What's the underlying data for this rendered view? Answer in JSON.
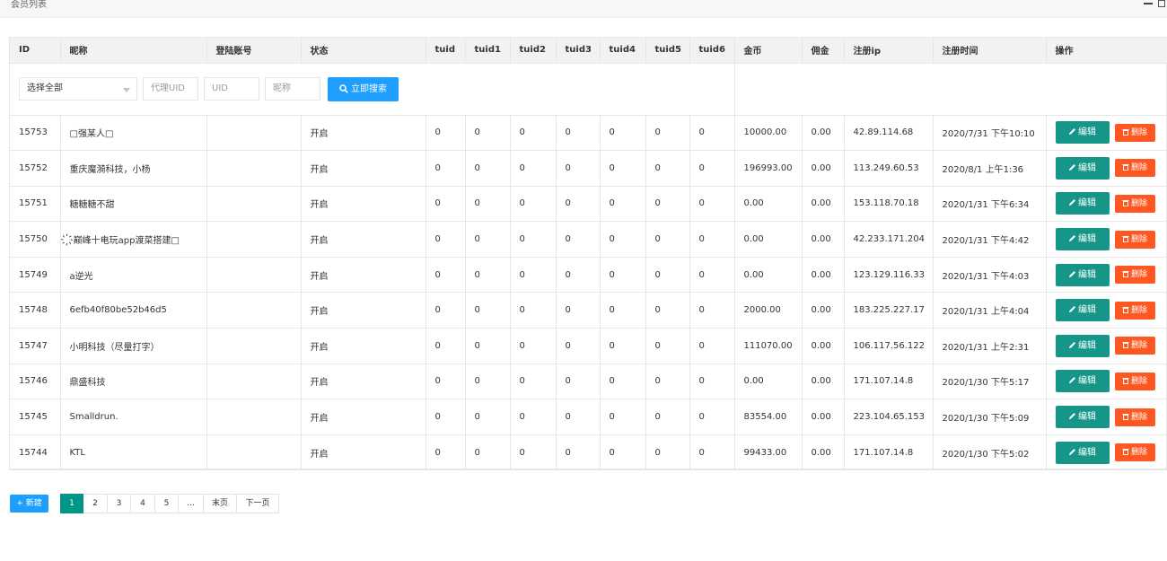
{
  "window": {
    "title": "会员列表"
  },
  "table": {
    "headers": [
      "ID",
      "昵称",
      "登陆账号",
      "状态",
      "tuid",
      "tuid1",
      "tuid2",
      "tuid3",
      "tuid4",
      "tuid5",
      "tuid6",
      "金币",
      "佣金",
      "注册ip",
      "注册时间",
      "操作"
    ],
    "rows": [
      [
        "15753",
        "□强某人□",
        "",
        "开启",
        "0",
        "0",
        "0",
        "0",
        "0",
        "0",
        "0",
        "10000.00",
        "0.00",
        "42.89.114.68",
        "2020/7/31 下午10:10"
      ],
      [
        "15752",
        "重庆魔漪科技，小杨",
        "",
        "开启",
        "0",
        "0",
        "0",
        "0",
        "0",
        "0",
        "0",
        "196993.00",
        "0.00",
        "113.249.60.53",
        "2020/8/1 上午1:36"
      ],
      [
        "15751",
        "糖糖糖不甜",
        "",
        "开启",
        "0",
        "0",
        "0",
        "0",
        "0",
        "0",
        "0",
        "0.00",
        "0.00",
        "153.118.70.18",
        "2020/1/31 下午6:34"
      ],
      [
        "15750",
        "҉巅峰十电玩app渡菜搭建□",
        "",
        "开启",
        "0",
        "0",
        "0",
        "0",
        "0",
        "0",
        "0",
        "0.00",
        "0.00",
        "42.233.171.204",
        "2020/1/31 下午4:42"
      ],
      [
        "15749",
        "a逆光",
        "",
        "开启",
        "0",
        "0",
        "0",
        "0",
        "0",
        "0",
        "0",
        "0.00",
        "0.00",
        "123.129.116.33",
        "2020/1/31 下午4:03"
      ],
      [
        "15748",
        "6efb40f80be52b46d5",
        "",
        "开启",
        "0",
        "0",
        "0",
        "0",
        "0",
        "0",
        "0",
        "2000.00",
        "0.00",
        "183.225.227.17",
        "2020/1/31 上午4:04"
      ],
      [
        "15747",
        "小明科技（尽量打字）",
        "",
        "开启",
        "0",
        "0",
        "0",
        "0",
        "0",
        "0",
        "0",
        "111070.00",
        "0.00",
        "106.117.56.122",
        "2020/1/31 上午2:31"
      ],
      [
        "15746",
        "鼎盛科技",
        "",
        "开启",
        "0",
        "0",
        "0",
        "0",
        "0",
        "0",
        "0",
        "0.00",
        "0.00",
        "171.107.14.8",
        "2020/1/30 下午5:17"
      ],
      [
        "15745",
        "Smalldrun.",
        "",
        "开启",
        "0",
        "0",
        "0",
        "0",
        "0",
        "0",
        "0",
        "83554.00",
        "0.00",
        "223.104.65.153",
        "2020/1/30 下午5:09"
      ],
      [
        "15744",
        "KTL",
        "",
        "开启",
        "0",
        "0",
        "0",
        "0",
        "0",
        "0",
        "0",
        "99433.00",
        "0.00",
        "171.107.14.8",
        "2020/1/30 下午5:02"
      ]
    ],
    "actions": {
      "edit_label": "编辑",
      "delete_label": "删除"
    }
  },
  "search": {
    "select_value": "选择全部",
    "agent_uid_placeholder": "代理UID",
    "uid_placeholder": "UID",
    "nickname_placeholder": "昵称",
    "button_label": "立即搜索"
  },
  "footer": {
    "new_label": "新建",
    "pages": [
      "1",
      "2",
      "3",
      "4",
      "5",
      "…",
      "末页",
      "下一页"
    ],
    "current_page": "1"
  },
  "colors": {
    "primary": "#1e9fff",
    "edit": "#159688",
    "delete": "#ff5722",
    "status_on": "#009900",
    "pager_current": "#009688"
  },
  "icons": [
    "minimize-icon",
    "maximize-icon",
    "search-icon",
    "edit-icon",
    "trash-icon",
    "plus-icon"
  ]
}
